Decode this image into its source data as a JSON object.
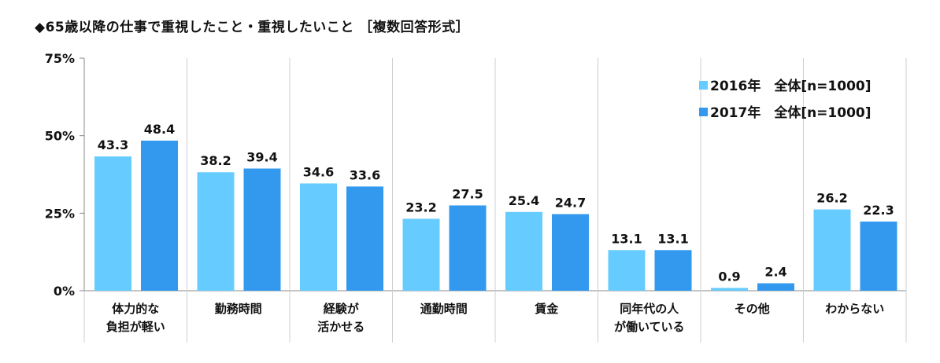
{
  "title": "◆65歳以降の仕事で重視したこと・重視したいこと ［複数回答形式］",
  "chart_data": {
    "type": "bar",
    "categories": [
      [
        "体力的な",
        "負担が軽い"
      ],
      [
        "勤務時間"
      ],
      [
        "経験が",
        "活かせる"
      ],
      [
        "通勤時間"
      ],
      [
        "賃金"
      ],
      [
        "同年代の人",
        "が働いている"
      ],
      [
        "その他"
      ],
      [
        "わからない"
      ]
    ],
    "series": [
      {
        "name": "2016年　全体[n=1000]",
        "values": [
          43.3,
          38.2,
          34.6,
          23.2,
          25.4,
          13.1,
          0.9,
          26.2
        ],
        "color": "#66ccff"
      },
      {
        "name": "2017年　全体[n=1000]",
        "values": [
          48.4,
          39.4,
          33.6,
          27.5,
          24.7,
          13.1,
          2.4,
          22.3
        ],
        "color": "#3399ee"
      }
    ],
    "yticks": [
      "0%",
      "25%",
      "50%",
      "75%"
    ],
    "ylim": [
      0,
      75
    ],
    "grid": false,
    "legend_position": "top-right"
  }
}
